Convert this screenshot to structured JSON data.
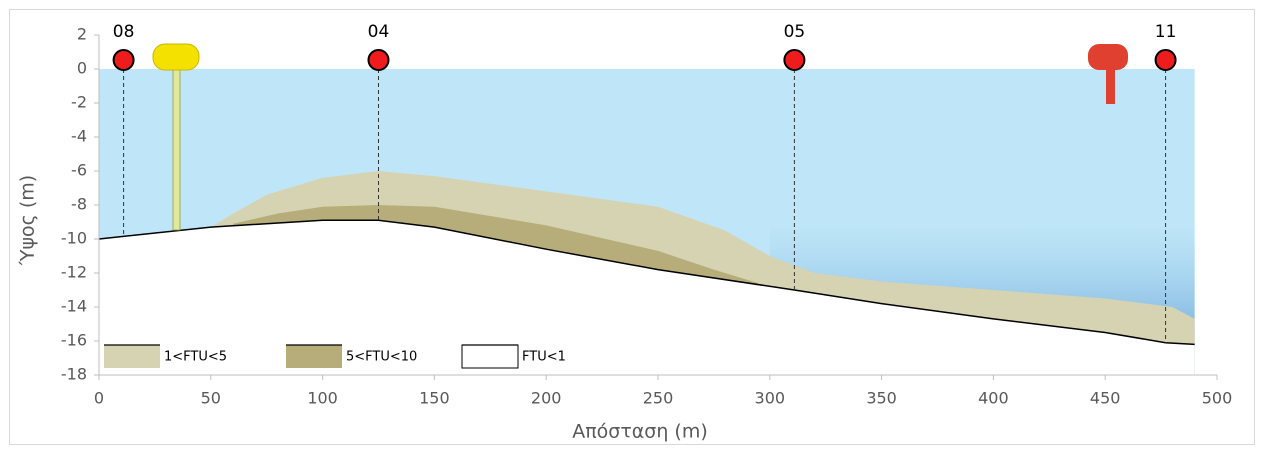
{
  "chart_data": {
    "type": "area",
    "xlabel": "Απόσταση (m)",
    "ylabel": "Ύψος (m)",
    "xlim": [
      0,
      500
    ],
    "xticks": [
      0,
      50,
      100,
      150,
      200,
      250,
      300,
      350,
      400,
      450,
      500
    ],
    "ylim": [
      -18,
      2
    ],
    "yticks": [
      -18,
      -16,
      -14,
      -12,
      -10,
      -8,
      -6,
      -4,
      -2,
      0,
      2
    ],
    "water_surface": 0,
    "legend": "lower left",
    "series": [
      {
        "name": "1<FTU<5",
        "color": "#d6d3b2",
        "x": [
          50,
          60,
          75,
          100,
          125,
          150,
          200,
          250,
          280,
          300,
          320,
          350,
          400,
          450,
          480,
          490
        ],
        "values": [
          -9.3,
          -8.5,
          -7.4,
          -6.4,
          -6.0,
          -6.3,
          -7.2,
          -8.1,
          -9.5,
          -11.0,
          -12.0,
          -12.5,
          -13.0,
          -13.5,
          -14.0,
          -14.7
        ]
      },
      {
        "name": "5<FTU<10",
        "color": "#b7ad7a",
        "x": [
          60,
          80,
          100,
          125,
          150,
          200,
          250,
          275,
          295
        ],
        "values": [
          -9.1,
          -8.5,
          -8.1,
          -8.0,
          -8.1,
          -9.2,
          -10.7,
          -11.8,
          -12.6
        ]
      },
      {
        "name": "FTU<1",
        "color": "#ffffff",
        "x": [
          0,
          50,
          100,
          125,
          150,
          200,
          250,
          311,
          350,
          400,
          450,
          477,
          490
        ],
        "values": [
          -10.0,
          -9.3,
          -8.9,
          -8.9,
          -9.3,
          -10.6,
          -11.8,
          -13.0,
          -13.8,
          -14.7,
          -15.5,
          -16.1,
          -16.2
        ]
      }
    ],
    "stations": [
      {
        "label": "08",
        "x": 11
      },
      {
        "label": "04",
        "x": 125
      },
      {
        "label": "05",
        "x": 311
      },
      {
        "label": "11",
        "x": 477
      }
    ]
  }
}
